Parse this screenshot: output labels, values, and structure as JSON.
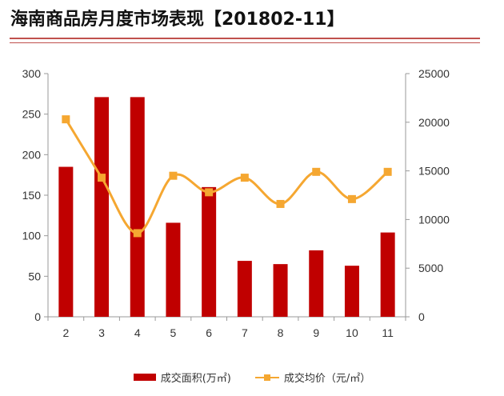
{
  "title": "海南商品房月度市场表现【201802-11】",
  "chart_data": {
    "type": "bar",
    "categories": [
      "2",
      "3",
      "4",
      "5",
      "6",
      "7",
      "8",
      "9",
      "10",
      "11"
    ],
    "series": [
      {
        "name": "成交面积(万㎡)",
        "type": "bar",
        "axis": "left",
        "color": "#c00000",
        "values": [
          185,
          271,
          271,
          116,
          160,
          69,
          65,
          82,
          63,
          104
        ]
      },
      {
        "name": "成交均价（元/㎡）",
        "type": "line",
        "axis": "right",
        "color": "#f5a731",
        "values": [
          20300,
          14300,
          8600,
          14500,
          12800,
          14300,
          11600,
          14900,
          12100,
          14900
        ]
      }
    ],
    "y_left": {
      "ylim": [
        0,
        300
      ],
      "ticks": [
        "0",
        "50",
        "100",
        "150",
        "200",
        "250",
        "300"
      ]
    },
    "y_right": {
      "ylim": [
        0,
        25000
      ],
      "ticks": [
        "0",
        "5000",
        "10000",
        "15000",
        "20000",
        "25000"
      ]
    },
    "grid": false,
    "legend_position": "bottom"
  }
}
